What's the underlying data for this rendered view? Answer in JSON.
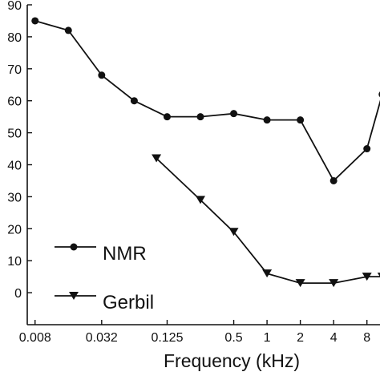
{
  "chart_data": {
    "type": "line",
    "xlabel": "Frequency (kHz)",
    "ylabel": "",
    "x_scale": "log2",
    "ylim": [
      -10,
      90
    ],
    "xlim": [
      0.0068,
      10.5
    ],
    "yticks": [
      0,
      10,
      20,
      30,
      40,
      50,
      60,
      70,
      80,
      90
    ],
    "xticks": [
      {
        "value": 0.008,
        "label": "0.008"
      },
      {
        "value": 0.032,
        "label": "0.032"
      },
      {
        "value": 0.125,
        "label": "0.125"
      },
      {
        "value": 0.5,
        "label": "0.5"
      },
      {
        "value": 1,
        "label": "1"
      },
      {
        "value": 2,
        "label": "2"
      },
      {
        "value": 4,
        "label": "4"
      },
      {
        "value": 8,
        "label": "8"
      }
    ],
    "grid": false,
    "legend_placement": "bottom-left",
    "series": [
      {
        "name": "NMR",
        "marker": "circle",
        "points": [
          {
            "x": 0.008,
            "y": 85
          },
          {
            "x": 0.016,
            "y": 82
          },
          {
            "x": 0.032,
            "y": 68
          },
          {
            "x": 0.063,
            "y": 60
          },
          {
            "x": 0.125,
            "y": 55
          },
          {
            "x": 0.25,
            "y": 55
          },
          {
            "x": 0.5,
            "y": 56
          },
          {
            "x": 1,
            "y": 54
          },
          {
            "x": 2,
            "y": 54
          },
          {
            "x": 4,
            "y": 35
          },
          {
            "x": 8,
            "y": 45
          },
          {
            "x": 11,
            "y": 62
          }
        ]
      },
      {
        "name": "Gerbil",
        "marker": "triangle-down",
        "points": [
          {
            "x": 0.1,
            "y": 42
          },
          {
            "x": 0.25,
            "y": 29
          },
          {
            "x": 0.5,
            "y": 19
          },
          {
            "x": 1,
            "y": 6
          },
          {
            "x": 2,
            "y": 3
          },
          {
            "x": 4,
            "y": 3
          },
          {
            "x": 8,
            "y": 5
          },
          {
            "x": 11,
            "y": 5
          }
        ]
      }
    ]
  }
}
